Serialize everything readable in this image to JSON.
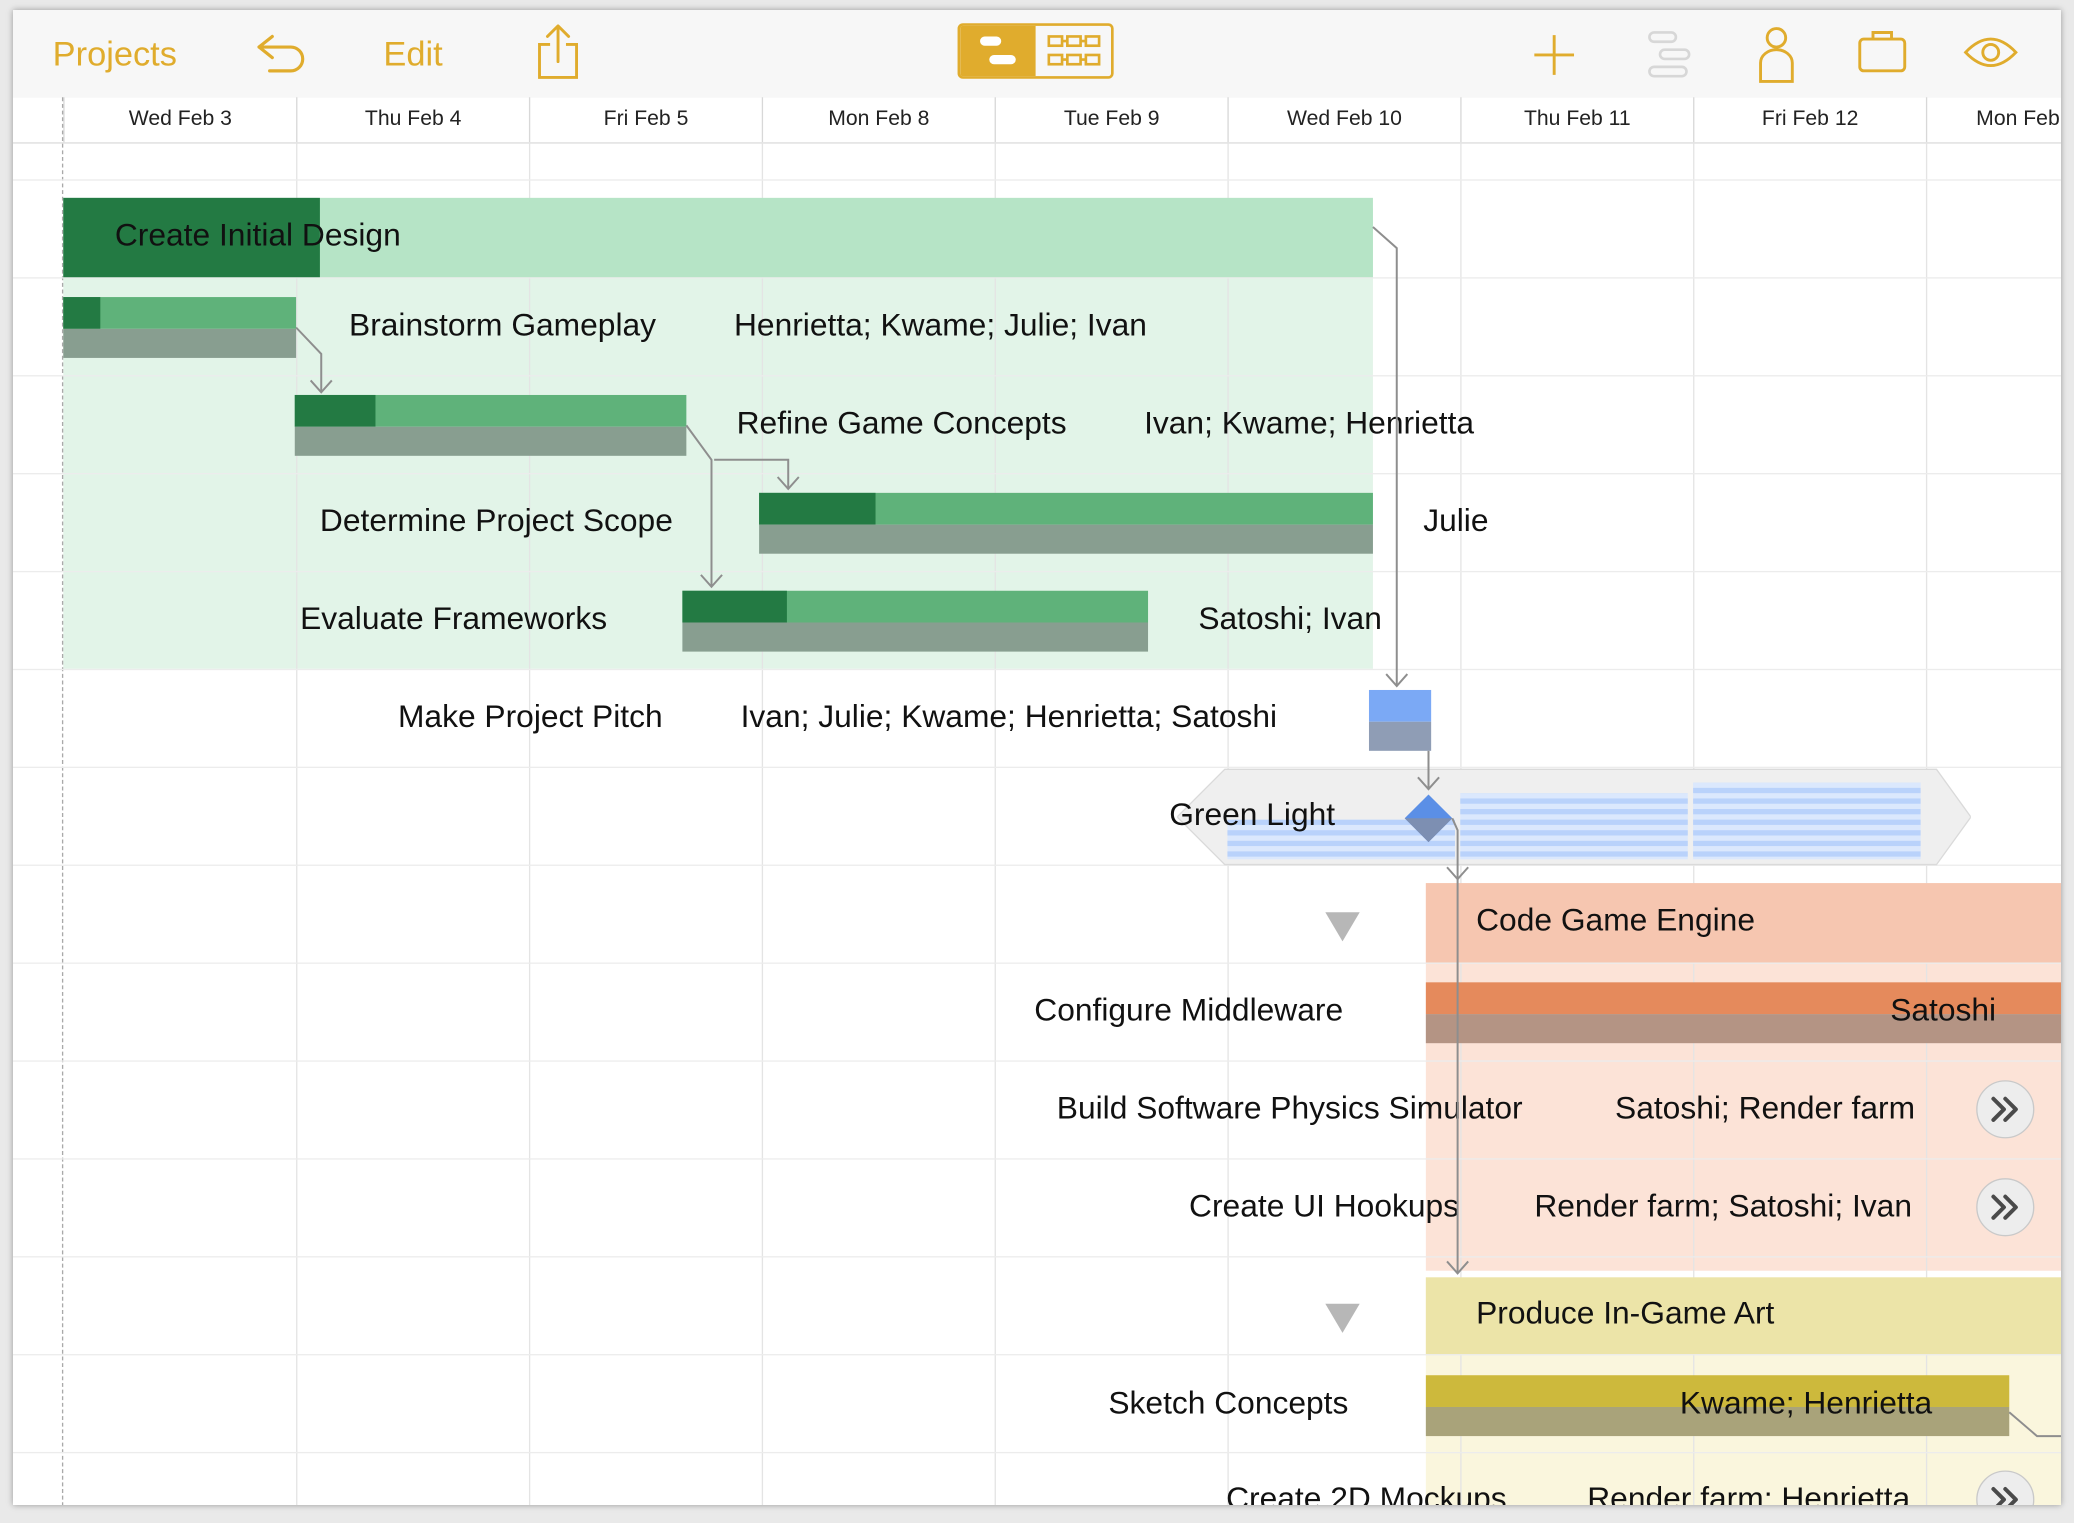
{
  "toolbar": {
    "projects_label": "Projects",
    "edit_label": "Edit",
    "accent_color": "#e0ac2d",
    "icons": [
      "undo-icon",
      "share-icon",
      "gantt-view-icon",
      "network-view-icon",
      "add-icon",
      "outline-icon",
      "resource-icon",
      "briefcase-icon",
      "eye-icon"
    ]
  },
  "dates": [
    "Wed Feb 3",
    "Thu Feb 4",
    "Fri Feb 5",
    "Mon Feb 8",
    "Tue Feb 9",
    "Wed Feb 10",
    "Thu Feb 11",
    "Fri Feb 12",
    "Mon Feb"
  ],
  "groups": {
    "design": {
      "title": "Create Initial Design",
      "color": "#b6e4c6",
      "row_color": "#e2f4e8",
      "progress_color": "#237a43"
    },
    "engine": {
      "title": "Code Game Engine",
      "color": "#f6c6b0",
      "row_color": "#fce3d7"
    },
    "art": {
      "title": "Produce In-Game Art",
      "color": "#ece4a8",
      "row_color": "#faf6dd"
    }
  },
  "tasks": {
    "brainstorm": {
      "name": "Brainstorm Gameplay",
      "resources": "Henrietta; Kwame; Julie; Ivan"
    },
    "refine": {
      "name": "Refine Game Concepts",
      "resources": "Ivan; Kwame; Henrietta"
    },
    "scope": {
      "name": "Determine Project Scope",
      "resources": "Julie"
    },
    "frameworks": {
      "name": "Evaluate Frameworks",
      "resources": "Satoshi; Ivan"
    },
    "pitch": {
      "name": "Make Project Pitch",
      "resources": "Ivan; Julie; Kwame; Henrietta; Satoshi"
    },
    "greenlight": {
      "name": "Green Light"
    },
    "middleware": {
      "name": "Configure Middleware",
      "resources": "Satoshi"
    },
    "physics": {
      "name": "Build Software Physics Simulator",
      "resources": "Satoshi; Render farm"
    },
    "ui_hookups": {
      "name": "Create UI Hookups",
      "resources": "Render farm; Satoshi; Ivan"
    },
    "sketch": {
      "name": "Sketch Concepts",
      "resources": "Kwame; Henrietta"
    },
    "mockups": {
      "name": "Create 2D Mockups",
      "resources": "Render farm; Henrietta"
    }
  },
  "colors": {
    "task_green": "#5fb27a",
    "task_green_done": "#237a43",
    "baseline_gray": "#889e90",
    "pitch_blue": "#7ba9f5",
    "milestone_blue": "#5b8fe6",
    "engine_bar": "#e58a5c",
    "art_bar": "#cdb93c"
  }
}
